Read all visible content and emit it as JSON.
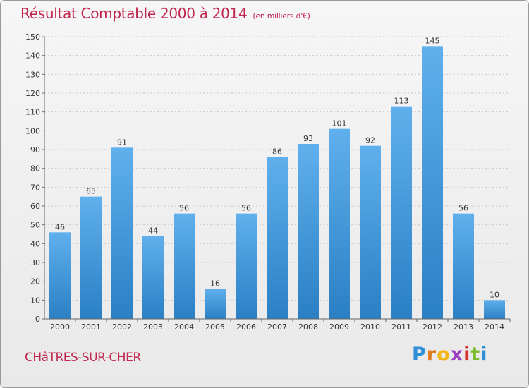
{
  "header": {
    "title": "Résultat Comptable 2000 à 2014",
    "subtitle": "(en milliers d'€)"
  },
  "footer": {
    "commune": "CHâTRES-SUR-CHER",
    "logo_letters": [
      "P",
      "r",
      "o",
      "x",
      "i",
      "t",
      "i"
    ]
  },
  "colors": {
    "title": "#c0274f",
    "bar_top": "#5fb0ec",
    "bar_bottom": "#2b7fc4"
  },
  "chart_data": {
    "type": "bar",
    "categories": [
      "2000",
      "2001",
      "2002",
      "2003",
      "2004",
      "2005",
      "2006",
      "2007",
      "2008",
      "2009",
      "2010",
      "2011",
      "2012",
      "2013",
      "2014"
    ],
    "values": [
      46,
      65,
      91,
      44,
      56,
      16,
      56,
      86,
      93,
      101,
      92,
      113,
      145,
      56,
      10
    ],
    "ylim": [
      0,
      150
    ],
    "yticks": [
      0,
      10,
      20,
      30,
      40,
      50,
      60,
      70,
      80,
      90,
      100,
      110,
      120,
      130,
      140,
      150
    ],
    "grid": true,
    "data_labels": true
  }
}
